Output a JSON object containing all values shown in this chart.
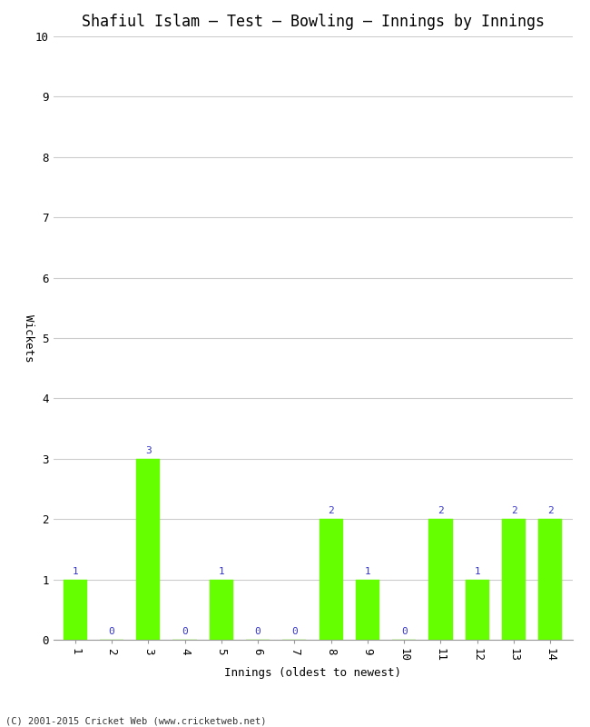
{
  "title": "Shafiul Islam – Test – Bowling – Innings by Innings",
  "xlabel": "Innings (oldest to newest)",
  "ylabel": "Wickets",
  "categories": [
    "1",
    "2",
    "3",
    "4",
    "5",
    "6",
    "7",
    "8",
    "9",
    "10",
    "11",
    "12",
    "13",
    "14"
  ],
  "values": [
    1,
    0,
    3,
    0,
    1,
    0,
    0,
    2,
    1,
    0,
    2,
    1,
    2,
    2
  ],
  "bar_color": "#66ff00",
  "bar_edge_color": "#66ff00",
  "label_color": "#3333cc",
  "background_color": "#ffffff",
  "grid_color": "#cccccc",
  "ylim": [
    0,
    10
  ],
  "yticks": [
    0,
    1,
    2,
    3,
    4,
    5,
    6,
    7,
    8,
    9,
    10
  ],
  "title_fontsize": 12,
  "axis_label_fontsize": 9,
  "tick_fontsize": 9,
  "bar_label_fontsize": 8,
  "footer_text": "(C) 2001-2015 Cricket Web (www.cricketweb.net)",
  "footer_fontsize": 7.5
}
